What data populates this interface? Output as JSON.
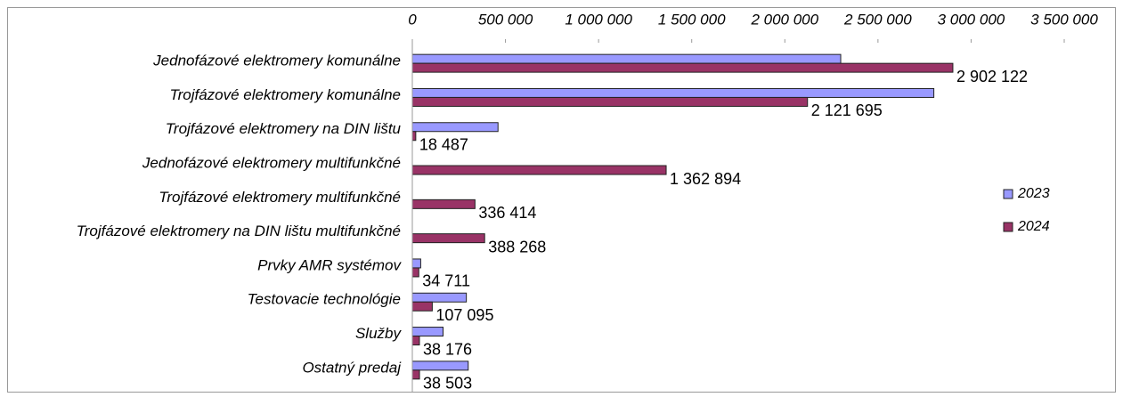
{
  "chart_data": {
    "type": "bar",
    "orientation": "horizontal",
    "categories": [
      "Jednofázové elektromery komunálne",
      "Trojfázové elektromery komunálne",
      "Trojfázové elektromery na DIN lištu",
      "Jednofázové elektromery multifunkčné",
      "Trojfázové elektromery multifunkčné",
      "Trojfázové elektromery na DIN lištu multifunkčné",
      "Prvky AMR systémov",
      "Testovacie technológie",
      "Služby",
      "Ostatný predaj"
    ],
    "series": [
      {
        "name": "2023",
        "color": "#9999ff",
        "values": [
          2300000,
          2800000,
          460000,
          null,
          null,
          null,
          45000,
          290000,
          165000,
          300000
        ]
      },
      {
        "name": "2024",
        "color": "#993366",
        "values": [
          2902122,
          2121695,
          18487,
          1362894,
          336414,
          388268,
          34711,
          107095,
          38176,
          38503
        ],
        "value_labels": [
          "2 902 122",
          "2 121 695",
          "18 487",
          "1 362 894",
          "336 414",
          "388 268",
          "34 711",
          "107 095",
          "38 176",
          "38 503"
        ]
      }
    ],
    "xlim": [
      0,
      3500000
    ],
    "xticks": [
      0,
      {
        "value": 500000,
        "label": "500 000"
      },
      {
        "value": 1000000,
        "label": "1 000 000"
      },
      {
        "value": 1500000,
        "label": "1 500 000"
      },
      {
        "value": 2000000,
        "label": "2 000 000"
      },
      {
        "value": 2500000,
        "label": "2 500 000"
      },
      {
        "value": 3000000,
        "label": "3 000 000"
      },
      {
        "value": 3500000,
        "label": "3 500 000"
      }
    ],
    "legend": "right"
  }
}
